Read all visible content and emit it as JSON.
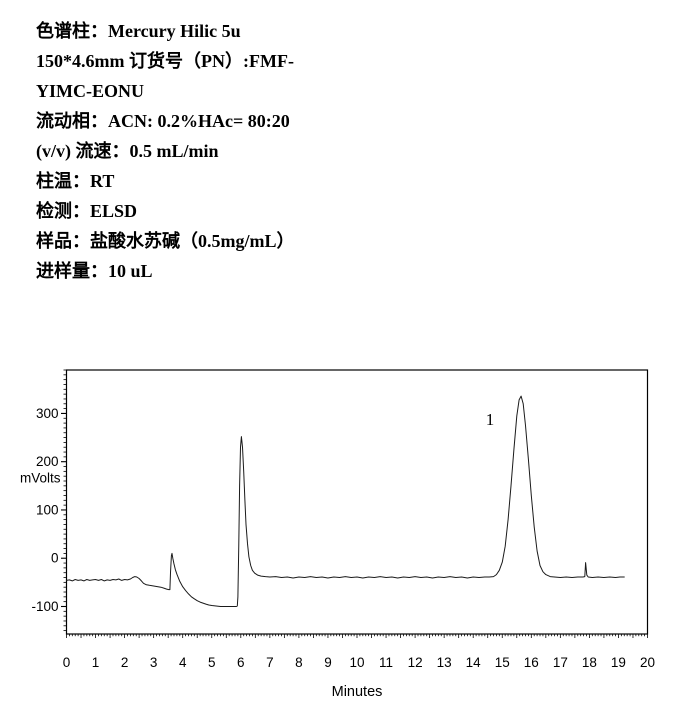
{
  "header": {
    "lines": [
      "色谱柱：Mercury Hilic 5u",
      "150*4.6mm 订货号（PN）:FMF-",
      "YIMC-EONU",
      "流动相：ACN: 0.2%HAc= 80:20",
      "(v/v) 流速：0.5 mL/min",
      "柱温：RT",
      "检测：ELSD",
      "样品：盐酸水苏碱（0.5mg/mL）",
      "进样量：10 uL"
    ]
  },
  "colors": {
    "ink": "#000000",
    "background": "#ffffff",
    "trace": "#1a1a1a"
  },
  "chart_data": {
    "type": "line",
    "title": "",
    "xlabel": "Minutes",
    "ylabel": "mVolts",
    "xlim": [
      0,
      20
    ],
    "ylim": [
      -157,
      390
    ],
    "x_ticks": [
      0,
      1,
      2,
      3,
      4,
      5,
      6,
      7,
      8,
      9,
      10,
      11,
      12,
      13,
      14,
      15,
      16,
      17,
      18,
      19,
      20
    ],
    "y_ticks": [
      -100,
      0,
      100,
      200,
      300
    ],
    "grid": false,
    "legend": false,
    "peak_labels": [
      {
        "label": "1",
        "t": 14.58,
        "v": 286
      }
    ],
    "peaks": [
      {
        "label": "1",
        "apex_min": 15.65,
        "apex_mV": 336
      },
      {
        "label": "",
        "apex_min": 3.62,
        "apex_mV": 10
      },
      {
        "label": "",
        "apex_min": 6.02,
        "apex_mV": 252
      },
      {
        "label": "",
        "apex_min": 17.87,
        "apex_mV": -9
      }
    ],
    "trace": [
      [
        0.0,
        -46
      ],
      [
        0.1,
        -45
      ],
      [
        0.2,
        -47
      ],
      [
        0.3,
        -44
      ],
      [
        0.4,
        -46
      ],
      [
        0.5,
        -45
      ],
      [
        0.6,
        -47
      ],
      [
        0.7,
        -44
      ],
      [
        0.8,
        -46
      ],
      [
        0.9,
        -45
      ],
      [
        1.0,
        -44
      ],
      [
        1.1,
        -46
      ],
      [
        1.2,
        -44
      ],
      [
        1.3,
        -47
      ],
      [
        1.4,
        -45
      ],
      [
        1.5,
        -46
      ],
      [
        1.6,
        -44
      ],
      [
        1.7,
        -45
      ],
      [
        1.8,
        -43
      ],
      [
        1.9,
        -46
      ],
      [
        2.0,
        -44
      ],
      [
        2.1,
        -45
      ],
      [
        2.2,
        -43
      ],
      [
        2.28,
        -40
      ],
      [
        2.35,
        -38
      ],
      [
        2.42,
        -39
      ],
      [
        2.5,
        -42
      ],
      [
        2.58,
        -47
      ],
      [
        2.65,
        -52
      ],
      [
        2.75,
        -55
      ],
      [
        2.85,
        -56
      ],
      [
        2.95,
        -57
      ],
      [
        3.05,
        -58
      ],
      [
        3.15,
        -59
      ],
      [
        3.25,
        -60
      ],
      [
        3.35,
        -62
      ],
      [
        3.45,
        -64
      ],
      [
        3.52,
        -65
      ],
      [
        3.56,
        -65
      ],
      [
        3.58,
        -30
      ],
      [
        3.61,
        5
      ],
      [
        3.63,
        10
      ],
      [
        3.66,
        0
      ],
      [
        3.7,
        -12
      ],
      [
        3.75,
        -24
      ],
      [
        3.8,
        -33
      ],
      [
        3.9,
        -48
      ],
      [
        4.0,
        -59
      ],
      [
        4.1,
        -67
      ],
      [
        4.2,
        -74
      ],
      [
        4.3,
        -80
      ],
      [
        4.4,
        -84
      ],
      [
        4.5,
        -88
      ],
      [
        4.6,
        -91
      ],
      [
        4.7,
        -93
      ],
      [
        4.8,
        -95
      ],
      [
        4.9,
        -97
      ],
      [
        5.0,
        -98
      ],
      [
        5.15,
        -99
      ],
      [
        5.3,
        -100
      ],
      [
        5.45,
        -100
      ],
      [
        5.6,
        -100
      ],
      [
        5.75,
        -100
      ],
      [
        5.85,
        -100
      ],
      [
        5.88,
        -99
      ],
      [
        5.9,
        -80
      ],
      [
        5.93,
        30
      ],
      [
        5.96,
        150
      ],
      [
        5.99,
        230
      ],
      [
        6.02,
        252
      ],
      [
        6.06,
        230
      ],
      [
        6.1,
        180
      ],
      [
        6.14,
        120
      ],
      [
        6.18,
        70
      ],
      [
        6.23,
        30
      ],
      [
        6.28,
        3
      ],
      [
        6.34,
        -15
      ],
      [
        6.4,
        -25
      ],
      [
        6.48,
        -31
      ],
      [
        6.58,
        -35
      ],
      [
        6.7,
        -37
      ],
      [
        6.85,
        -38
      ],
      [
        7.0,
        -39
      ],
      [
        7.2,
        -38
      ],
      [
        7.4,
        -40
      ],
      [
        7.6,
        -39
      ],
      [
        7.8,
        -41
      ],
      [
        8.0,
        -39
      ],
      [
        8.2,
        -40
      ],
      [
        8.4,
        -38
      ],
      [
        8.6,
        -40
      ],
      [
        8.8,
        -39
      ],
      [
        9.0,
        -41
      ],
      [
        9.2,
        -39
      ],
      [
        9.4,
        -40
      ],
      [
        9.6,
        -38
      ],
      [
        9.8,
        -40
      ],
      [
        10.0,
        -39
      ],
      [
        10.2,
        -41
      ],
      [
        10.4,
        -39
      ],
      [
        10.6,
        -40
      ],
      [
        10.8,
        -38
      ],
      [
        11.0,
        -40
      ],
      [
        11.2,
        -39
      ],
      [
        11.4,
        -41
      ],
      [
        11.6,
        -39
      ],
      [
        11.8,
        -40
      ],
      [
        12.0,
        -38
      ],
      [
        12.2,
        -40
      ],
      [
        12.4,
        -39
      ],
      [
        12.6,
        -41
      ],
      [
        12.8,
        -39
      ],
      [
        13.0,
        -40
      ],
      [
        13.2,
        -38
      ],
      [
        13.4,
        -40
      ],
      [
        13.6,
        -39
      ],
      [
        13.8,
        -41
      ],
      [
        14.0,
        -39
      ],
      [
        14.2,
        -40
      ],
      [
        14.4,
        -39
      ],
      [
        14.55,
        -39
      ],
      [
        14.7,
        -38
      ],
      [
        14.8,
        -34
      ],
      [
        14.9,
        -25
      ],
      [
        15.0,
        -8
      ],
      [
        15.1,
        25
      ],
      [
        15.2,
        80
      ],
      [
        15.3,
        150
      ],
      [
        15.4,
        225
      ],
      [
        15.5,
        295
      ],
      [
        15.58,
        328
      ],
      [
        15.65,
        336
      ],
      [
        15.72,
        320
      ],
      [
        15.8,
        275
      ],
      [
        15.9,
        205
      ],
      [
        16.0,
        130
      ],
      [
        16.1,
        65
      ],
      [
        16.2,
        15
      ],
      [
        16.3,
        -15
      ],
      [
        16.4,
        -28
      ],
      [
        16.5,
        -34
      ],
      [
        16.65,
        -38
      ],
      [
        16.8,
        -39
      ],
      [
        17.0,
        -40
      ],
      [
        17.2,
        -39
      ],
      [
        17.4,
        -40
      ],
      [
        17.6,
        -39
      ],
      [
        17.78,
        -39
      ],
      [
        17.84,
        -38
      ],
      [
        17.87,
        -9
      ],
      [
        17.91,
        -35
      ],
      [
        17.96,
        -39
      ],
      [
        18.1,
        -40
      ],
      [
        18.3,
        -39
      ],
      [
        18.5,
        -40
      ],
      [
        18.7,
        -39
      ],
      [
        18.9,
        -40
      ],
      [
        19.05,
        -39
      ],
      [
        19.2,
        -39
      ]
    ]
  }
}
